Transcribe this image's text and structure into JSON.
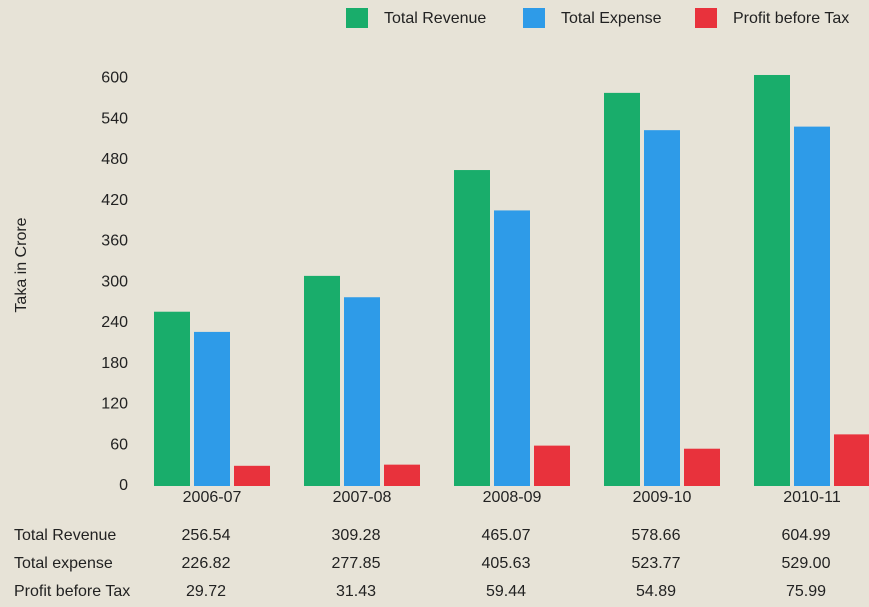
{
  "chart_data": {
    "type": "bar",
    "ylabel": "Taka in Crore",
    "categories": [
      "2006-07",
      "2007-08",
      "2008-09",
      "2009-10",
      "2010-11"
    ],
    "series": [
      {
        "name": "Total Revenue",
        "color": "#19ad6b",
        "values": [
          256.54,
          309.28,
          465.07,
          578.66,
          604.99
        ],
        "value_labels": [
          "256.54",
          "309.28",
          "465.07",
          "578.66",
          "604.99"
        ]
      },
      {
        "name": "Total Expense",
        "color": "#2e9be8",
        "values": [
          226.82,
          277.85,
          405.63,
          523.77,
          529.0
        ],
        "value_labels": [
          "226.82",
          "277.85",
          "405.63",
          "523.77",
          "529.00"
        ]
      },
      {
        "name": "Profit before Tax",
        "color": "#e8323c",
        "values": [
          29.72,
          31.43,
          59.44,
          54.89,
          75.99
        ],
        "value_labels": [
          "29.72",
          "31.43",
          "59.44",
          "54.89",
          "75.99"
        ]
      }
    ],
    "row_labels": [
      "Total Revenue",
      "Total expense",
      "Profit before Tax"
    ],
    "ylim": [
      0,
      630
    ],
    "yticks": [
      0,
      60,
      120,
      180,
      240,
      300,
      360,
      420,
      480,
      540,
      600
    ],
    "legend": "top"
  }
}
